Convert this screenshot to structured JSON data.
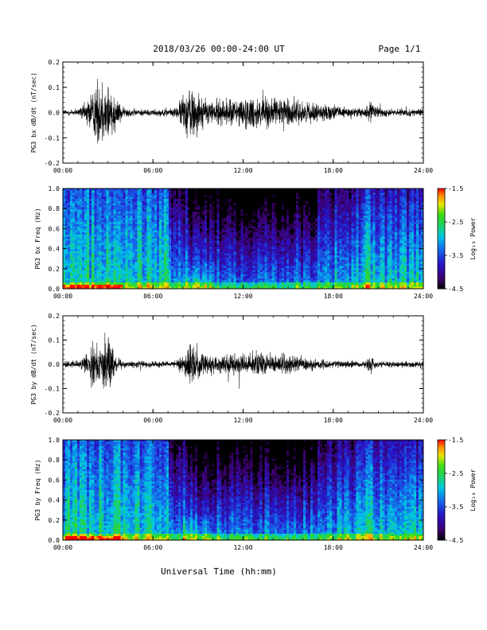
{
  "header": {
    "title": "2018/03/26  00:00-24:00 UT",
    "page_label": "Page 1/1"
  },
  "footer": {
    "xlabel": "Universal Time (hh:mm)"
  },
  "colors": {
    "trace": "#000000",
    "frame": "#000000",
    "background": "#ffffff"
  },
  "colorbar": {
    "label": "Log₁₀ Power",
    "ticks": [
      "-1.5",
      "-2.5",
      "-3.5",
      "-4.5"
    ],
    "range": [
      -4.5,
      -1.5
    ],
    "colormap": "rainbow"
  },
  "chart_data": [
    {
      "type": "line",
      "ylabel": "PG3 bx dB/dt (nT/sec)",
      "xlim": [
        "00:00",
        "24:00"
      ],
      "xticks": [
        "00:00",
        "06:00",
        "12:00",
        "18:00",
        "24:00"
      ],
      "ylim": [
        -0.2,
        0.2
      ],
      "yticks": [
        "0.2",
        "0.1",
        "0.0",
        "-0.1",
        "-0.2"
      ],
      "envelope_hours": [
        0,
        1,
        1.5,
        2,
        2.5,
        3,
        3.5,
        4,
        5,
        6,
        7,
        7.5,
        8,
        8.5,
        9,
        9.5,
        10,
        11,
        12,
        13,
        14,
        15,
        16,
        17,
        18,
        19,
        20,
        20.5,
        21,
        22,
        23,
        24
      ],
      "envelope_amplitude": [
        0.02,
        0.02,
        0.06,
        0.15,
        0.2,
        0.2,
        0.1,
        0.03,
        0.02,
        0.02,
        0.02,
        0.03,
        0.1,
        0.17,
        0.12,
        0.08,
        0.07,
        0.08,
        0.09,
        0.1,
        0.08,
        0.09,
        0.06,
        0.05,
        0.04,
        0.03,
        0.03,
        0.06,
        0.03,
        0.02,
        0.02,
        0.02
      ]
    },
    {
      "type": "heatmap",
      "ylabel": "PG3 bx Freq (Hz)",
      "xlim": [
        "00:00",
        "24:00"
      ],
      "xticks": [
        "00:00",
        "06:00",
        "12:00",
        "18:00",
        "24:00"
      ],
      "ylim": [
        0.0,
        1.0
      ],
      "yticks": [
        "1.0",
        "0.8",
        "0.6",
        "0.4",
        "0.2",
        "0.0"
      ],
      "zlim": [
        -4.5,
        -1.5
      ]
    },
    {
      "type": "line",
      "ylabel": "PG3 by dB/dt (nT/sec)",
      "xlim": [
        "00:00",
        "24:00"
      ],
      "xticks": [
        "00:00",
        "06:00",
        "12:00",
        "18:00",
        "24:00"
      ],
      "ylim": [
        -0.2,
        0.2
      ],
      "yticks": [
        "0.2",
        "0.1",
        "0.0",
        "-0.1",
        "-0.2"
      ],
      "envelope_hours": [
        0,
        1,
        1.5,
        2,
        2.5,
        3,
        3.5,
        4,
        5,
        6,
        7,
        7.5,
        8,
        8.5,
        9,
        9.5,
        10,
        11,
        12,
        13,
        14,
        15,
        16,
        17,
        18,
        19,
        20,
        20.5,
        21,
        22,
        23,
        24
      ],
      "envelope_amplitude": [
        0.02,
        0.02,
        0.05,
        0.14,
        0.1,
        0.2,
        0.06,
        0.02,
        0.02,
        0.02,
        0.02,
        0.02,
        0.06,
        0.13,
        0.08,
        0.06,
        0.05,
        0.06,
        0.06,
        0.07,
        0.06,
        0.06,
        0.04,
        0.03,
        0.02,
        0.02,
        0.02,
        0.05,
        0.02,
        0.02,
        0.02,
        0.02
      ]
    },
    {
      "type": "heatmap",
      "ylabel": "PG3 by Freq (Hz)",
      "xlim": [
        "00:00",
        "24:00"
      ],
      "xticks": [
        "00:00",
        "06:00",
        "12:00",
        "18:00",
        "24:00"
      ],
      "ylim": [
        0.0,
        1.0
      ],
      "yticks": [
        "1.0",
        "0.8",
        "0.6",
        "0.4",
        "0.2",
        "0.0"
      ],
      "zlim": [
        -4.5,
        -1.5
      ]
    }
  ]
}
